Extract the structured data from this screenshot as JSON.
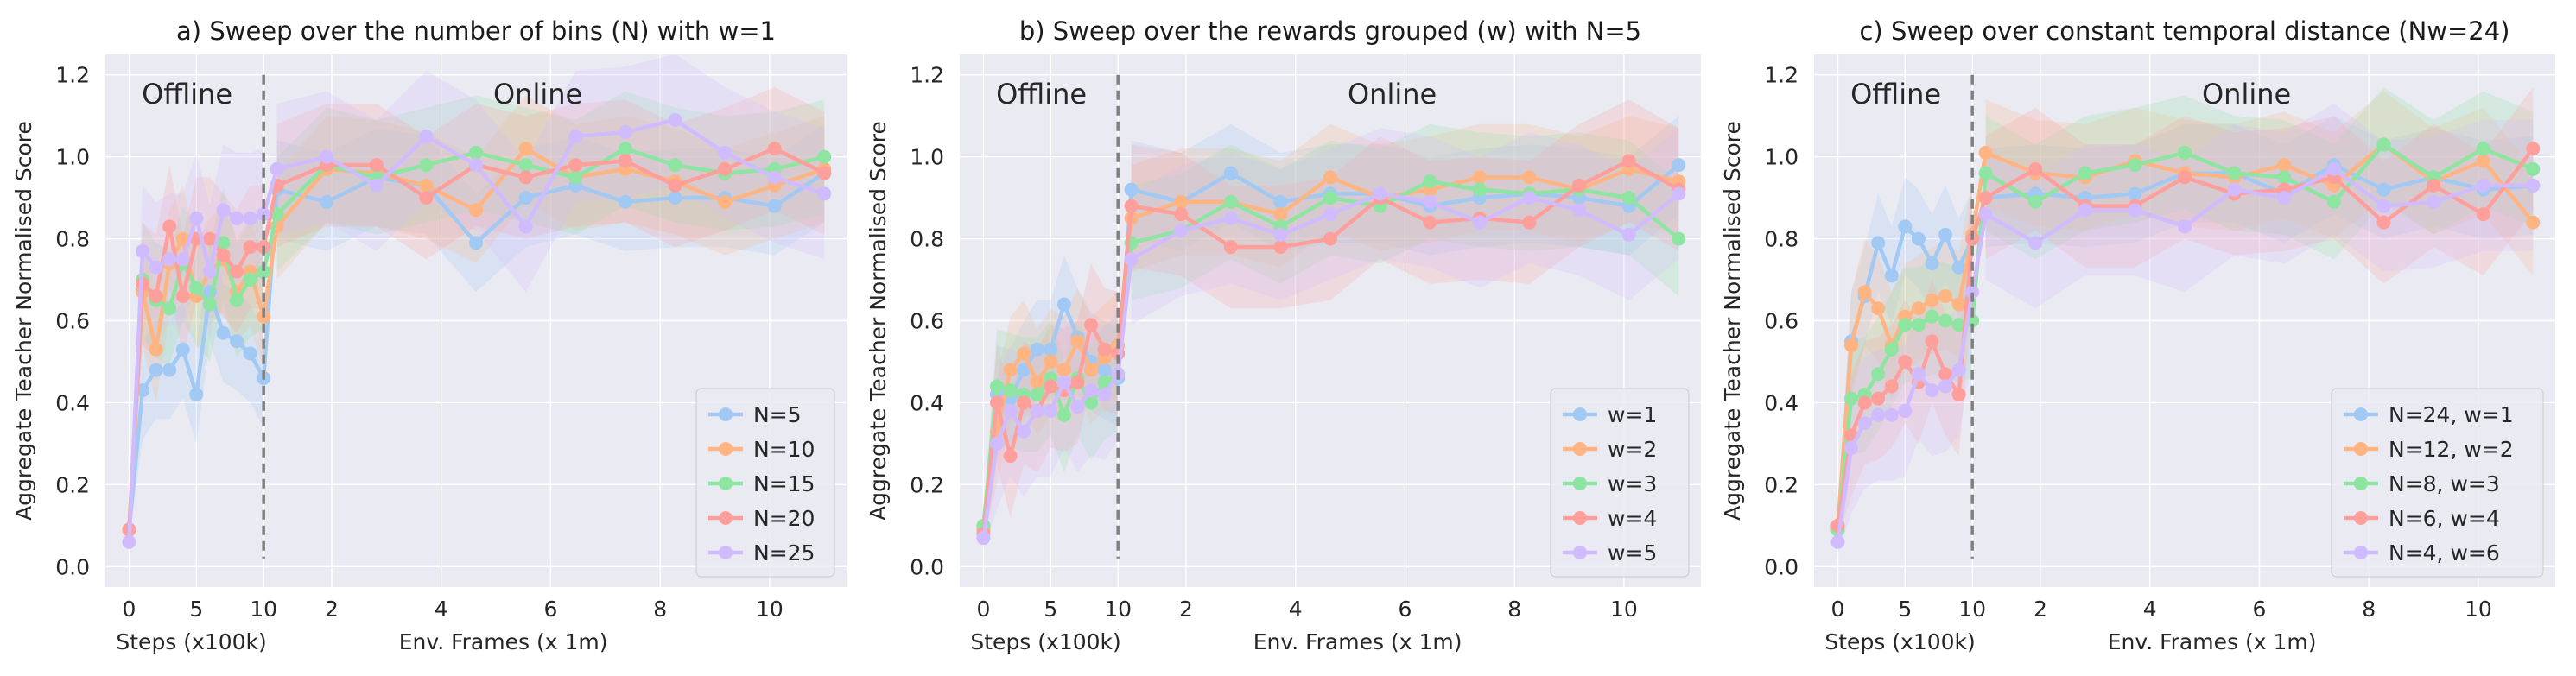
{
  "chart_data": [
    {
      "type": "line",
      "title": "a) Sweep over the number of bins (N) with w=1",
      "ylabel": "Aggregate Teacher Normalised Score",
      "xlabel_offline": "Steps (x100k)",
      "xlabel_online": "Env. Frames (x 1m)",
      "phase_labels": [
        "Offline",
        "Online"
      ],
      "offline_ticks": [
        "0",
        "5",
        "10"
      ],
      "online_ticks": [
        "2",
        "4",
        "6",
        "8",
        "10"
      ],
      "yticks": [
        "0.0",
        "0.2",
        "0.4",
        "0.6",
        "0.8",
        "1.0",
        "1.2"
      ],
      "ylim": [
        -0.05,
        1.25
      ],
      "offline_x": [
        0,
        1,
        2,
        3,
        4,
        5,
        6,
        7,
        8,
        9,
        10
      ],
      "online_x": [
        0,
        1,
        2,
        3,
        4,
        5,
        6,
        7,
        8,
        9,
        10,
        11
      ],
      "legend_position": "lower right",
      "series": [
        {
          "name": "N=5",
          "color": "#a1c9f4",
          "offline": [
            0.09,
            0.43,
            0.48,
            0.48,
            0.53,
            0.42,
            0.67,
            0.57,
            0.55,
            0.52,
            0.46
          ],
          "online": [
            0.92,
            0.89,
            0.95,
            0.93,
            0.79,
            0.9,
            0.93,
            0.89,
            0.9,
            0.9,
            0.88,
            0.96
          ]
        },
        {
          "name": "N=10",
          "color": "#ffb482",
          "offline": [
            0.09,
            0.67,
            0.53,
            0.74,
            0.8,
            0.66,
            0.72,
            0.75,
            0.67,
            0.72,
            0.61
          ],
          "online": [
            0.83,
            0.97,
            0.96,
            0.93,
            0.87,
            1.02,
            0.95,
            0.97,
            0.94,
            0.89,
            0.93,
            0.97
          ]
        },
        {
          "name": "N=15",
          "color": "#8de5a1",
          "offline": [
            0.09,
            0.7,
            0.65,
            0.63,
            0.74,
            0.68,
            0.64,
            0.79,
            0.65,
            0.7,
            0.72
          ],
          "online": [
            0.86,
            0.98,
            0.95,
            0.98,
            1.01,
            0.98,
            0.95,
            1.02,
            0.98,
            0.96,
            0.97,
            1.0
          ]
        },
        {
          "name": "N=20",
          "color": "#ff9f9b",
          "offline": [
            0.09,
            0.69,
            0.66,
            0.83,
            0.66,
            0.8,
            0.8,
            0.76,
            0.72,
            0.78,
            0.78
          ],
          "online": [
            0.93,
            0.98,
            0.98,
            0.9,
            0.98,
            0.95,
            0.98,
            0.99,
            0.93,
            0.97,
            1.02,
            0.96
          ]
        },
        {
          "name": "N=25",
          "color": "#d0bbff",
          "offline": [
            0.06,
            0.77,
            0.73,
            0.75,
            0.75,
            0.85,
            0.72,
            0.87,
            0.85,
            0.85,
            0.86
          ],
          "online": [
            0.97,
            1.0,
            0.93,
            1.05,
            0.98,
            0.83,
            1.05,
            1.06,
            1.09,
            1.01,
            0.95,
            0.91
          ]
        }
      ]
    },
    {
      "type": "line",
      "title": "b) Sweep over the rewards grouped (w) with N=5",
      "ylabel": "Aggregate Teacher Normalised Score",
      "xlabel_offline": "Steps (x100k)",
      "xlabel_online": "Env. Frames (x 1m)",
      "phase_labels": [
        "Offline",
        "Online"
      ],
      "offline_ticks": [
        "0",
        "5",
        "10"
      ],
      "online_ticks": [
        "2",
        "4",
        "6",
        "8",
        "10"
      ],
      "yticks": [
        "0.0",
        "0.2",
        "0.4",
        "0.6",
        "0.8",
        "1.0",
        "1.2"
      ],
      "ylim": [
        -0.05,
        1.25
      ],
      "offline_x": [
        0,
        1,
        2,
        3,
        4,
        5,
        6,
        7,
        8,
        9,
        10
      ],
      "online_x": [
        0,
        1,
        2,
        3,
        4,
        5,
        6,
        7,
        8,
        9,
        10,
        11
      ],
      "legend_position": "lower right",
      "series": [
        {
          "name": "w=1",
          "color": "#a1c9f4",
          "offline": [
            0.09,
            0.42,
            0.41,
            0.48,
            0.53,
            0.53,
            0.64,
            0.56,
            0.5,
            0.48,
            0.46
          ],
          "online": [
            0.92,
            0.89,
            0.96,
            0.89,
            0.91,
            0.91,
            0.88,
            0.9,
            0.91,
            0.9,
            0.88,
            0.98
          ]
        },
        {
          "name": "w=2",
          "color": "#ffb482",
          "offline": [
            0.09,
            0.33,
            0.48,
            0.52,
            0.45,
            0.5,
            0.48,
            0.55,
            0.48,
            0.51,
            0.54
          ],
          "online": [
            0.85,
            0.89,
            0.89,
            0.86,
            0.95,
            0.9,
            0.92,
            0.95,
            0.95,
            0.92,
            0.97,
            0.94
          ]
        },
        {
          "name": "w=3",
          "color": "#8de5a1",
          "offline": [
            0.1,
            0.44,
            0.43,
            0.42,
            0.42,
            0.46,
            0.37,
            0.46,
            0.4,
            0.45,
            0.47
          ],
          "online": [
            0.79,
            0.82,
            0.89,
            0.83,
            0.9,
            0.88,
            0.94,
            0.92,
            0.91,
            0.92,
            0.9,
            0.8
          ]
        },
        {
          "name": "w=4",
          "color": "#ff9f9b",
          "offline": [
            0.08,
            0.4,
            0.27,
            0.4,
            0.38,
            0.44,
            0.43,
            0.45,
            0.59,
            0.53,
            0.52
          ],
          "online": [
            0.88,
            0.86,
            0.78,
            0.78,
            0.8,
            0.9,
            0.84,
            0.85,
            0.84,
            0.93,
            0.99,
            0.92
          ]
        },
        {
          "name": "w=5",
          "color": "#d0bbff",
          "offline": [
            0.07,
            0.3,
            0.38,
            0.33,
            0.38,
            0.38,
            0.45,
            0.39,
            0.43,
            0.42,
            0.47
          ],
          "online": [
            0.75,
            0.82,
            0.85,
            0.81,
            0.86,
            0.91,
            0.89,
            0.84,
            0.9,
            0.87,
            0.81,
            0.91
          ]
        }
      ]
    },
    {
      "type": "line",
      "title": "c) Sweep over constant temporal distance (Nw=24)",
      "ylabel": "Aggregate Teacher Normalised Score",
      "xlabel_offline": "Steps (x100k)",
      "xlabel_online": "Env. Frames (x 1m)",
      "phase_labels": [
        "Offline",
        "Online"
      ],
      "offline_ticks": [
        "0",
        "5",
        "10"
      ],
      "online_ticks": [
        "2",
        "4",
        "6",
        "8",
        "10"
      ],
      "yticks": [
        "0.0",
        "0.2",
        "0.4",
        "0.6",
        "0.8",
        "1.0",
        "1.2"
      ],
      "ylim": [
        -0.05,
        1.25
      ],
      "offline_x": [
        0,
        1,
        2,
        3,
        4,
        5,
        6,
        7,
        8,
        9,
        10
      ],
      "online_x": [
        0,
        1,
        2,
        3,
        4,
        5,
        6,
        7,
        8,
        9,
        10,
        11
      ],
      "legend_position": "lower right",
      "series": [
        {
          "name": "N=24, w=1",
          "color": "#a1c9f4",
          "offline": [
            0.09,
            0.55,
            0.66,
            0.79,
            0.71,
            0.83,
            0.8,
            0.74,
            0.81,
            0.73,
            0.8
          ],
          "online": [
            0.9,
            0.91,
            0.9,
            0.91,
            0.96,
            0.96,
            0.91,
            0.98,
            0.92,
            0.95,
            0.92,
            0.93
          ]
        },
        {
          "name": "N=12, w=2",
          "color": "#ffb482",
          "offline": [
            0.1,
            0.54,
            0.67,
            0.63,
            0.54,
            0.61,
            0.63,
            0.65,
            0.66,
            0.64,
            0.81
          ],
          "online": [
            1.01,
            0.96,
            0.95,
            0.99,
            0.96,
            0.95,
            0.98,
            0.93,
            1.03,
            0.94,
            0.99,
            0.84
          ]
        },
        {
          "name": "N=8, w=3",
          "color": "#8de5a1",
          "offline": [
            0.09,
            0.41,
            0.42,
            0.47,
            0.53,
            0.59,
            0.59,
            0.61,
            0.6,
            0.59,
            0.6
          ],
          "online": [
            0.96,
            0.89,
            0.96,
            0.98,
            1.01,
            0.96,
            0.95,
            0.89,
            1.03,
            0.95,
            1.02,
            0.97
          ]
        },
        {
          "name": "N=6, w=4",
          "color": "#ff9f9b",
          "offline": [
            0.1,
            0.32,
            0.4,
            0.41,
            0.44,
            0.5,
            0.45,
            0.55,
            0.47,
            0.42,
            0.8
          ],
          "online": [
            0.9,
            0.97,
            0.88,
            0.88,
            0.95,
            0.91,
            0.92,
            0.95,
            0.84,
            0.93,
            0.86,
            1.02
          ]
        },
        {
          "name": "N=4, w=6",
          "color": "#d0bbff",
          "offline": [
            0.06,
            0.29,
            0.35,
            0.37,
            0.37,
            0.38,
            0.47,
            0.43,
            0.44,
            0.48,
            0.67
          ],
          "online": [
            0.86,
            0.79,
            0.87,
            0.87,
            0.83,
            0.92,
            0.9,
            0.97,
            0.88,
            0.89,
            0.93,
            0.93
          ]
        }
      ]
    }
  ]
}
